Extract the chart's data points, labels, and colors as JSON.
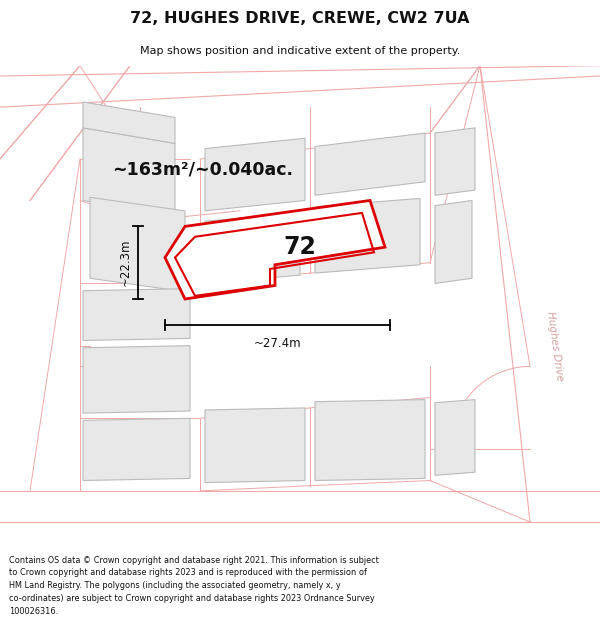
{
  "title": "72, HUGHES DRIVE, CREWE, CW2 7UA",
  "subtitle": "Map shows position and indicative extent of the property.",
  "footer_line1": "Contains OS data © Crown copyright and database right 2021. This information is subject",
  "footer_line2": "to Crown copyright and database rights 2023 and is reproduced with the permission of",
  "footer_line3": "HM Land Registry. The polygons (including the associated geometry, namely x, y",
  "footer_line4": "co-ordinates) are subject to Crown copyright and database rights 2023 Ordnance Survey",
  "footer_line5": "100026316.",
  "area_label": "~163m²/~0.040ac.",
  "width_label": "~27.4m",
  "height_label": "~22.3m",
  "number_label": "72",
  "map_bg": "#ffffff",
  "building_fill": "#e8e8e8",
  "building_stroke": "#bbbbbb",
  "road_line_color": "#f0a8a8",
  "property_stroke": "#dd0000",
  "text_color": "#111111",
  "hughes_label": "Hughes Drive",
  "hughes_label_color": "#d4a0a0"
}
